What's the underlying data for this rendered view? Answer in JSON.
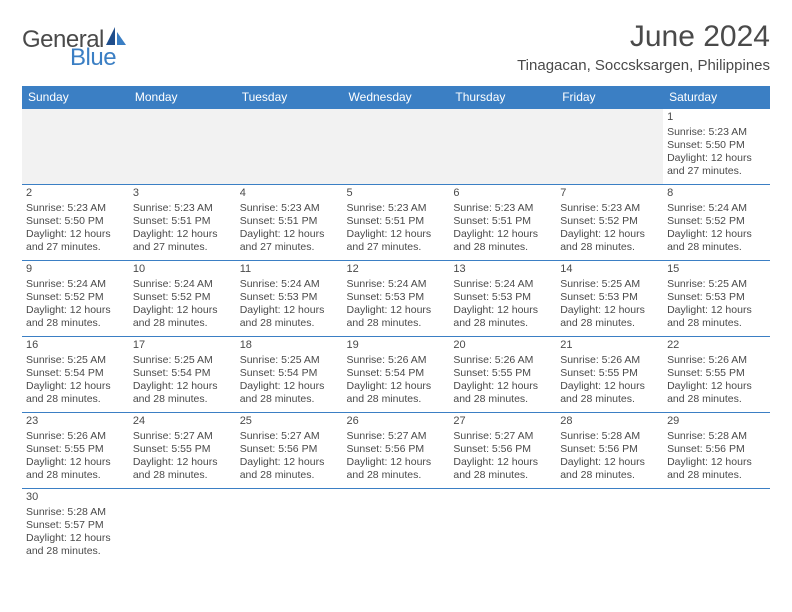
{
  "logo": {
    "part1": "General",
    "part2": "Blue"
  },
  "title": "June 2024",
  "subtitle": "Tinagacan, Soccsksargen, Philippines",
  "colors": {
    "header_bg": "#3b7fc4",
    "header_fg": "#ffffff",
    "blank_bg": "#f2f2f2",
    "text": "#4a4a4a",
    "rule": "#3b7fc4"
  },
  "day_headers": [
    "Sunday",
    "Monday",
    "Tuesday",
    "Wednesday",
    "Thursday",
    "Friday",
    "Saturday"
  ],
  "weeks": [
    [
      {
        "blank": true
      },
      {
        "blank": true
      },
      {
        "blank": true
      },
      {
        "blank": true
      },
      {
        "blank": true
      },
      {
        "blank": true
      },
      {
        "n": "1",
        "sr": "5:23 AM",
        "ss": "5:50 PM",
        "dl": "12 hours and 27 minutes."
      }
    ],
    [
      {
        "n": "2",
        "sr": "5:23 AM",
        "ss": "5:50 PM",
        "dl": "12 hours and 27 minutes."
      },
      {
        "n": "3",
        "sr": "5:23 AM",
        "ss": "5:51 PM",
        "dl": "12 hours and 27 minutes."
      },
      {
        "n": "4",
        "sr": "5:23 AM",
        "ss": "5:51 PM",
        "dl": "12 hours and 27 minutes."
      },
      {
        "n": "5",
        "sr": "5:23 AM",
        "ss": "5:51 PM",
        "dl": "12 hours and 27 minutes."
      },
      {
        "n": "6",
        "sr": "5:23 AM",
        "ss": "5:51 PM",
        "dl": "12 hours and 28 minutes."
      },
      {
        "n": "7",
        "sr": "5:23 AM",
        "ss": "5:52 PM",
        "dl": "12 hours and 28 minutes."
      },
      {
        "n": "8",
        "sr": "5:24 AM",
        "ss": "5:52 PM",
        "dl": "12 hours and 28 minutes."
      }
    ],
    [
      {
        "n": "9",
        "sr": "5:24 AM",
        "ss": "5:52 PM",
        "dl": "12 hours and 28 minutes."
      },
      {
        "n": "10",
        "sr": "5:24 AM",
        "ss": "5:52 PM",
        "dl": "12 hours and 28 minutes."
      },
      {
        "n": "11",
        "sr": "5:24 AM",
        "ss": "5:53 PM",
        "dl": "12 hours and 28 minutes."
      },
      {
        "n": "12",
        "sr": "5:24 AM",
        "ss": "5:53 PM",
        "dl": "12 hours and 28 minutes."
      },
      {
        "n": "13",
        "sr": "5:24 AM",
        "ss": "5:53 PM",
        "dl": "12 hours and 28 minutes."
      },
      {
        "n": "14",
        "sr": "5:25 AM",
        "ss": "5:53 PM",
        "dl": "12 hours and 28 minutes."
      },
      {
        "n": "15",
        "sr": "5:25 AM",
        "ss": "5:53 PM",
        "dl": "12 hours and 28 minutes."
      }
    ],
    [
      {
        "n": "16",
        "sr": "5:25 AM",
        "ss": "5:54 PM",
        "dl": "12 hours and 28 minutes."
      },
      {
        "n": "17",
        "sr": "5:25 AM",
        "ss": "5:54 PM",
        "dl": "12 hours and 28 minutes."
      },
      {
        "n": "18",
        "sr": "5:25 AM",
        "ss": "5:54 PM",
        "dl": "12 hours and 28 minutes."
      },
      {
        "n": "19",
        "sr": "5:26 AM",
        "ss": "5:54 PM",
        "dl": "12 hours and 28 minutes."
      },
      {
        "n": "20",
        "sr": "5:26 AM",
        "ss": "5:55 PM",
        "dl": "12 hours and 28 minutes."
      },
      {
        "n": "21",
        "sr": "5:26 AM",
        "ss": "5:55 PM",
        "dl": "12 hours and 28 minutes."
      },
      {
        "n": "22",
        "sr": "5:26 AM",
        "ss": "5:55 PM",
        "dl": "12 hours and 28 minutes."
      }
    ],
    [
      {
        "n": "23",
        "sr": "5:26 AM",
        "ss": "5:55 PM",
        "dl": "12 hours and 28 minutes."
      },
      {
        "n": "24",
        "sr": "5:27 AM",
        "ss": "5:55 PM",
        "dl": "12 hours and 28 minutes."
      },
      {
        "n": "25",
        "sr": "5:27 AM",
        "ss": "5:56 PM",
        "dl": "12 hours and 28 minutes."
      },
      {
        "n": "26",
        "sr": "5:27 AM",
        "ss": "5:56 PM",
        "dl": "12 hours and 28 minutes."
      },
      {
        "n": "27",
        "sr": "5:27 AM",
        "ss": "5:56 PM",
        "dl": "12 hours and 28 minutes."
      },
      {
        "n": "28",
        "sr": "5:28 AM",
        "ss": "5:56 PM",
        "dl": "12 hours and 28 minutes."
      },
      {
        "n": "29",
        "sr": "5:28 AM",
        "ss": "5:56 PM",
        "dl": "12 hours and 28 minutes."
      }
    ],
    [
      {
        "n": "30",
        "sr": "5:28 AM",
        "ss": "5:57 PM",
        "dl": "12 hours and 28 minutes."
      },
      {
        "blank": true
      },
      {
        "blank": true
      },
      {
        "blank": true
      },
      {
        "blank": true
      },
      {
        "blank": true
      },
      {
        "blank": true
      }
    ]
  ],
  "labels": {
    "sunrise": "Sunrise:",
    "sunset": "Sunset:",
    "daylight": "Daylight:"
  }
}
